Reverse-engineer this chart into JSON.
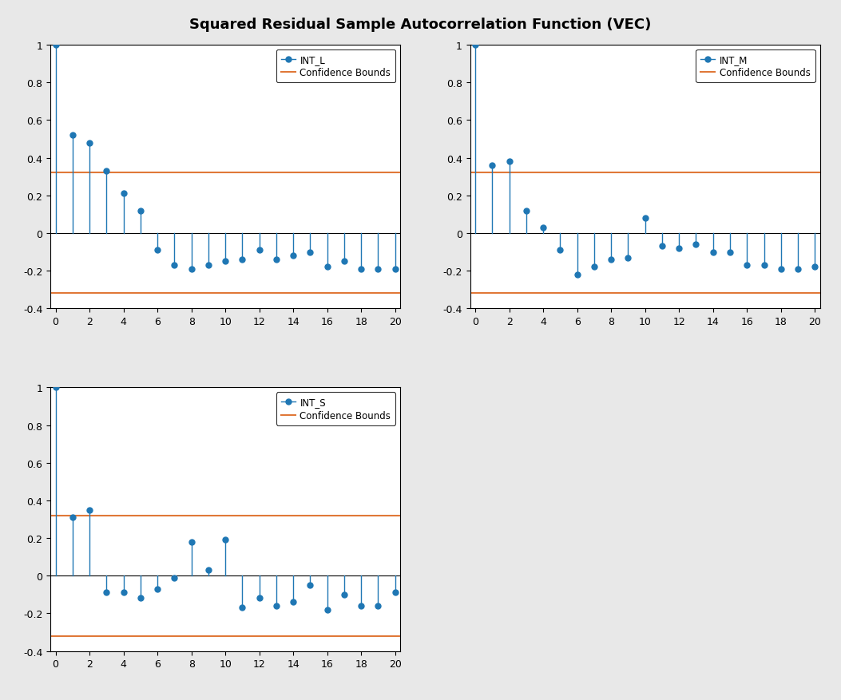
{
  "title": "Squared Residual Sample Autocorrelation Function (VEC)",
  "confidence_bound": 0.32,
  "confidence_bound_neg": -0.32,
  "line_color": "#1f77b4",
  "conf_color": "#e07838",
  "background_color": "#e8e8e8",
  "plot_bg": "#ffffff",
  "ylim": [
    -0.4,
    1.0
  ],
  "xlim_min": -0.3,
  "xlim_max": 20.3,
  "yticks": [
    -0.4,
    -0.2,
    0.0,
    0.2,
    0.4,
    0.6,
    0.8,
    1.0
  ],
  "ytick_labels": [
    "-0.4",
    "-0.2",
    "0",
    "0.2",
    "0.4",
    "0.6",
    "0.8",
    "1"
  ],
  "xticks": [
    0,
    2,
    4,
    6,
    8,
    10,
    12,
    14,
    16,
    18,
    20
  ],
  "series": {
    "INT_L": [
      1.0,
      0.52,
      0.48,
      0.33,
      0.21,
      0.12,
      -0.09,
      -0.17,
      -0.19,
      -0.17,
      -0.15,
      -0.14,
      -0.09,
      -0.14,
      -0.12,
      -0.1,
      -0.18,
      -0.15,
      -0.19,
      -0.19,
      -0.19
    ],
    "INT_M": [
      1.0,
      0.36,
      0.38,
      0.12,
      0.03,
      -0.09,
      -0.22,
      -0.18,
      -0.14,
      -0.13,
      0.08,
      -0.07,
      -0.08,
      -0.06,
      -0.1,
      -0.1,
      -0.17,
      -0.17,
      -0.19,
      -0.19,
      -0.18
    ],
    "INT_S": [
      1.0,
      0.31,
      0.35,
      -0.09,
      -0.09,
      -0.12,
      -0.07,
      -0.01,
      0.18,
      0.03,
      0.19,
      -0.17,
      -0.12,
      -0.16,
      -0.14,
      -0.05,
      -0.18,
      -0.1,
      -0.16,
      -0.16,
      -0.09
    ]
  },
  "series_order": [
    "INT_L",
    "INT_M",
    "INT_S"
  ],
  "title_fontsize": 13,
  "tick_fontsize": 9,
  "legend_fontsize": 8.5,
  "marker_size": 5,
  "stem_lw": 1.0,
  "conf_lw": 1.5,
  "zero_lw": 0.8
}
